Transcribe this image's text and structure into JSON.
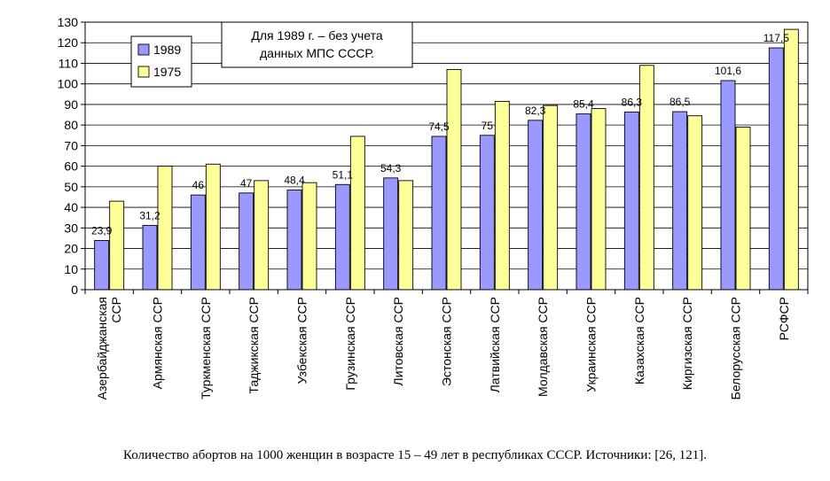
{
  "chart_data": {
    "type": "bar",
    "categories": [
      [
        "Азербайджанская",
        "ССР"
      ],
      [
        "Армянская ССР"
      ],
      [
        "Туркменская ССР"
      ],
      [
        "Таджикская ССР"
      ],
      [
        "Узбекская ССР"
      ],
      [
        "Грузинская ССР"
      ],
      [
        "Литовская ССР"
      ],
      [
        "Эстонская ССР"
      ],
      [
        "Латвийская ССР"
      ],
      [
        "Молдавская ССР"
      ],
      [
        "Украинская ССР"
      ],
      [
        "Казахская ССР"
      ],
      [
        "Киргизская ССР"
      ],
      [
        "Белорусская ССР"
      ],
      [
        "РСФСР"
      ]
    ],
    "series": [
      {
        "name": "1989",
        "color": "#9999ff",
        "values": [
          23.9,
          31.2,
          46,
          47,
          48.4,
          51.1,
          54.3,
          74.5,
          75,
          82.3,
          85.4,
          86.3,
          86.5,
          101.6,
          117.5
        ],
        "labels": [
          "23,9",
          "31,2",
          "46",
          "47",
          "48,4",
          "51,1",
          "54,3",
          "74,5",
          "75",
          "82,3",
          "85,4",
          "86,3",
          "86,5",
          "101,6",
          "117,5"
        ]
      },
      {
        "name": "1975",
        "color": "#ffff99",
        "values": [
          43,
          60,
          61,
          53,
          52,
          74.5,
          53,
          107,
          91.5,
          89.5,
          88,
          109,
          84.5,
          79,
          126.5
        ]
      }
    ],
    "yticks": [
      0,
      10,
      20,
      30,
      40,
      50,
      60,
      70,
      80,
      90,
      100,
      110,
      120,
      130
    ],
    "ylim": [
      0,
      130
    ],
    "grid": true,
    "legend_position": "top-left",
    "annotation": [
      "Для 1989 г. – без учета",
      "данных МПС СССР."
    ],
    "title": "",
    "xlabel": "",
    "ylabel": ""
  },
  "caption": "Количество абортов на 1000 женщин в возрасте 15 – 49 лет в республиках СССР. Источники: [26, 121]."
}
